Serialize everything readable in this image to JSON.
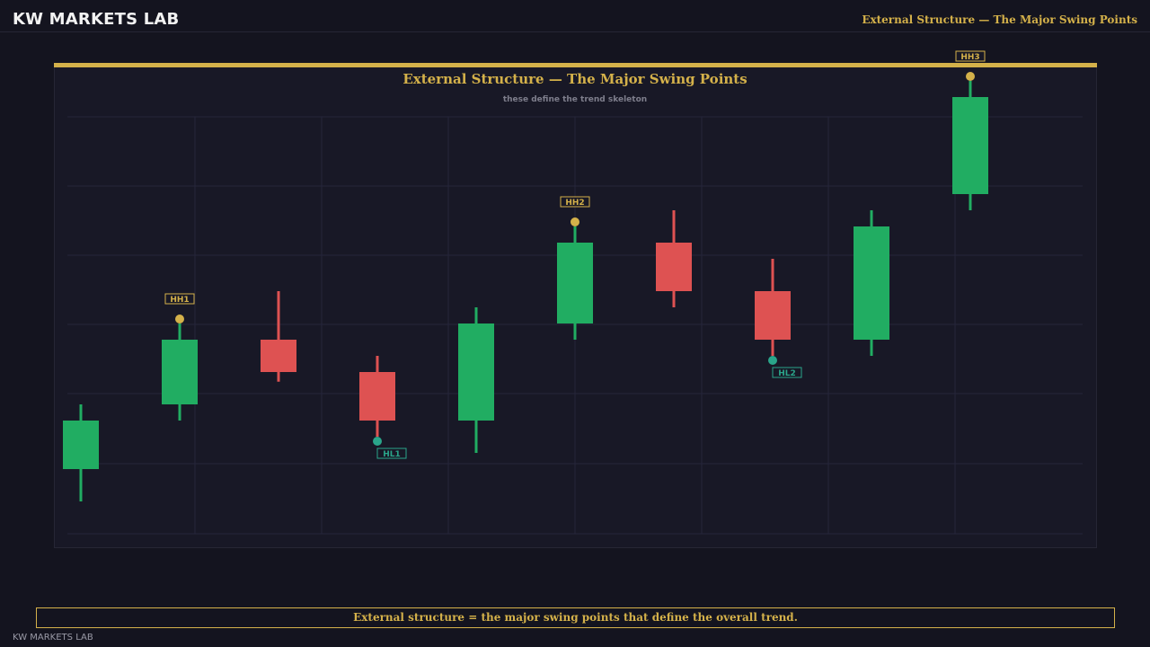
{
  "header": {
    "brand": "KW MARKETS LAB",
    "title": "External Structure — The Major Swing Points"
  },
  "chart_data": {
    "type": "candlestick",
    "title": "External Structure — The Major Swing Points",
    "subtitle": "these define the trend skeleton",
    "xlabel": "",
    "ylabel": "",
    "grid": true,
    "ylim": [
      0,
      13
    ],
    "candles": [
      {
        "open": 2.0,
        "close": 3.5,
        "high": 4.0,
        "low": 1.0,
        "direction": "up"
      },
      {
        "open": 4.0,
        "close": 6.0,
        "high": 6.5,
        "low": 3.5,
        "direction": "up"
      },
      {
        "open": 6.0,
        "close": 5.0,
        "high": 7.5,
        "low": 4.7,
        "direction": "down"
      },
      {
        "open": 5.0,
        "close": 3.5,
        "high": 5.5,
        "low": 3.0,
        "direction": "down"
      },
      {
        "open": 3.5,
        "close": 6.5,
        "high": 7.0,
        "low": 2.5,
        "direction": "up"
      },
      {
        "open": 6.5,
        "close": 9.0,
        "high": 9.5,
        "low": 6.0,
        "direction": "up"
      },
      {
        "open": 9.0,
        "close": 7.5,
        "high": 10.0,
        "low": 7.0,
        "direction": "down"
      },
      {
        "open": 7.5,
        "close": 6.0,
        "high": 8.5,
        "low": 5.5,
        "direction": "down"
      },
      {
        "open": 6.0,
        "close": 9.5,
        "high": 10.0,
        "low": 5.5,
        "direction": "up"
      },
      {
        "open": 10.5,
        "close": 13.5,
        "high": 14.0,
        "low": 10.0,
        "direction": "up"
      }
    ],
    "swing_points": [
      {
        "label": "HH1",
        "candle": 1,
        "price": 6.5,
        "kind": "high"
      },
      {
        "label": "HL1",
        "candle": 3,
        "price": 3.0,
        "kind": "low"
      },
      {
        "label": "HH2",
        "candle": 5,
        "price": 9.5,
        "kind": "high"
      },
      {
        "label": "HL2",
        "candle": 7,
        "price": 5.5,
        "kind": "low"
      },
      {
        "label": "HH3",
        "candle": 9,
        "price": 14.0,
        "kind": "high"
      }
    ],
    "colors": {
      "up": "#21ad62",
      "down": "#de5252",
      "swing_high": "#d4b14a",
      "swing_low": "#2aa58a",
      "grid": "#26263a"
    }
  },
  "footer": {
    "note": "External structure = the major swing points that define the overall trend.",
    "brand": "KW MARKETS LAB"
  }
}
